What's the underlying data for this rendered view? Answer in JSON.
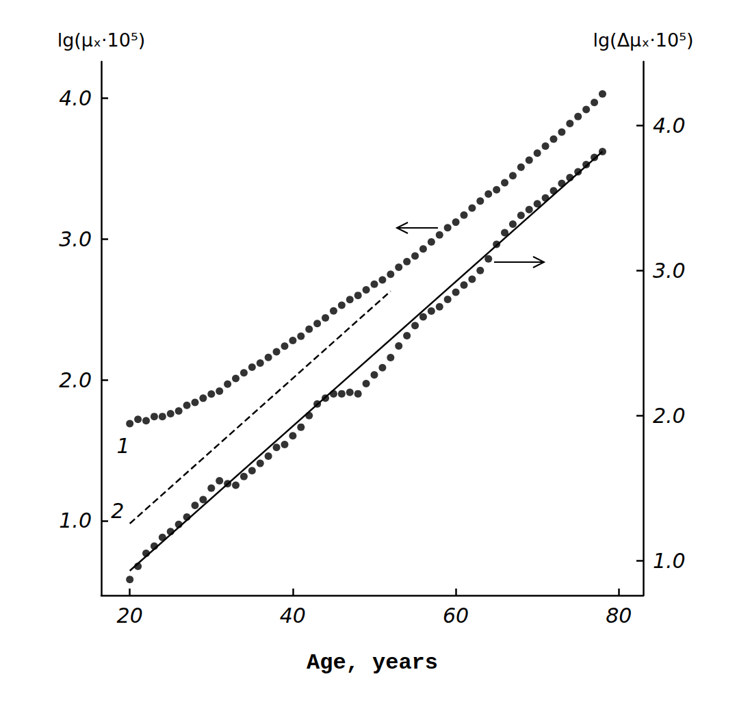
{
  "chart_data": {
    "type": "scatter",
    "x_label": "Age, years",
    "y_label": "lg(μₓ·10⁵)",
    "y2_label": "lg(Δμₓ·10⁵)",
    "xlim": [
      16.5,
      83
    ],
    "xticks": [
      20,
      40,
      60,
      80
    ],
    "ylim": [
      0.47,
      4.26
    ],
    "yticks": [
      {
        "value": 1,
        "label": "1.0"
      },
      {
        "value": 2,
        "label": "2.0"
      },
      {
        "value": 3,
        "label": "3.0"
      },
      {
        "value": 4,
        "label": "4.0"
      }
    ],
    "y2lim": [
      0.76,
      4.44
    ],
    "y2ticks": [
      {
        "value": 1,
        "label": "1.0"
      },
      {
        "value": 2,
        "label": "2.0"
      },
      {
        "value": 3,
        "label": "3.0"
      },
      {
        "value": 4,
        "label": "4.0"
      }
    ],
    "grid": false,
    "series": [
      {
        "type": "scatter",
        "marker": "circle",
        "color": "#000000",
        "axis": "y",
        "x": [
          20,
          21,
          22,
          23,
          24,
          25,
          26,
          27,
          28,
          29,
          30,
          31,
          32,
          33,
          34,
          35,
          36,
          37,
          38,
          39,
          40,
          41,
          42,
          43,
          44,
          45,
          46,
          47,
          48,
          49,
          50,
          51,
          52,
          53,
          54,
          55,
          56,
          57,
          58,
          59,
          60,
          61,
          62,
          63,
          64,
          65,
          66,
          67,
          68,
          69,
          70,
          71,
          72,
          73,
          74,
          75,
          76,
          77,
          78
        ],
        "values": [
          1.69,
          1.72,
          1.71,
          1.74,
          1.74,
          1.76,
          1.78,
          1.82,
          1.84,
          1.87,
          1.9,
          1.92,
          1.97,
          2.01,
          2.05,
          2.09,
          2.12,
          2.16,
          2.2,
          2.24,
          2.28,
          2.31,
          2.36,
          2.4,
          2.44,
          2.49,
          2.53,
          2.57,
          2.6,
          2.64,
          2.68,
          2.71,
          2.75,
          2.8,
          2.84,
          2.88,
          2.93,
          2.98,
          3.03,
          3.08,
          3.12,
          3.17,
          3.22,
          3.27,
          3.32,
          3.35,
          3.4,
          3.45,
          3.51,
          3.56,
          3.61,
          3.66,
          3.71,
          3.76,
          3.82,
          3.87,
          3.92,
          3.97,
          4.03
        ]
      },
      {
        "type": "line",
        "line_style": "dashed",
        "color": "#000000",
        "axis": "y",
        "x": [
          20,
          52
        ],
        "values": [
          0.98,
          2.63
        ]
      },
      {
        "type": "scatter",
        "marker": "circle",
        "color": "#000000",
        "axis": "y2",
        "x": [
          20,
          21,
          22,
          23,
          24,
          25,
          26,
          27,
          28,
          29,
          30,
          31,
          32,
          33,
          34,
          35,
          36,
          37,
          38,
          39,
          40,
          41,
          42,
          43,
          44,
          45,
          46,
          47,
          48,
          49,
          50,
          51,
          52,
          53,
          54,
          55,
          56,
          57,
          58,
          59,
          60,
          61,
          62,
          63,
          64,
          65,
          66,
          67,
          68,
          69,
          70,
          71,
          72,
          73,
          74,
          75,
          76,
          77,
          78
        ],
        "values": [
          0.87,
          0.96,
          1.05,
          1.1,
          1.16,
          1.2,
          1.25,
          1.3,
          1.38,
          1.42,
          1.5,
          1.55,
          1.53,
          1.52,
          1.58,
          1.62,
          1.67,
          1.72,
          1.78,
          1.8,
          1.86,
          1.92,
          2.0,
          2.08,
          2.12,
          2.15,
          2.15,
          2.16,
          2.15,
          2.22,
          2.28,
          2.33,
          2.4,
          2.48,
          2.55,
          2.62,
          2.68,
          2.72,
          2.75,
          2.8,
          2.85,
          2.9,
          2.94,
          3.0,
          3.08,
          3.18,
          3.26,
          3.32,
          3.38,
          3.42,
          3.46,
          3.5,
          3.55,
          3.6,
          3.64,
          3.68,
          3.73,
          3.78,
          3.82
        ]
      },
      {
        "type": "line",
        "line_style": "solid",
        "color": "#000000",
        "axis": "y2",
        "x": [
          20,
          78
        ],
        "values": [
          0.93,
          3.82
        ]
      }
    ],
    "annotations": [
      {
        "text": "1",
        "x": 19.2,
        "y": 1.53
      },
      {
        "text": "2",
        "x": 18.5,
        "y": 1.07
      }
    ]
  }
}
